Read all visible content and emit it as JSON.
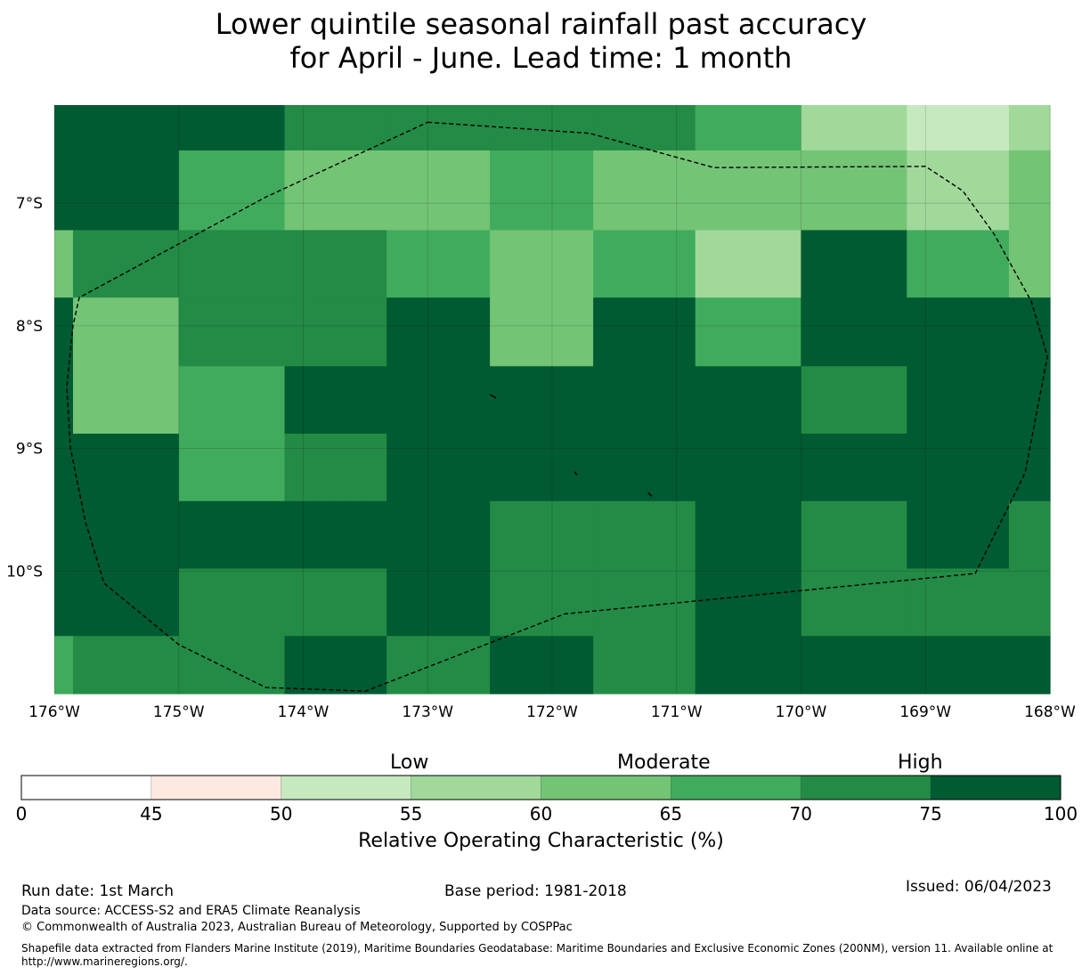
{
  "title": {
    "line1": "Lower quintile seasonal rainfall past accuracy",
    "line2": "for April - June. Lead time: 1 month"
  },
  "map": {
    "lon_labels": [
      "176°W",
      "175°W",
      "174°W",
      "173°W",
      "172°W",
      "171°W",
      "170°W",
      "169°W",
      "168°W"
    ],
    "lat_labels": [
      "7°S",
      "8°S",
      "9°S",
      "10°S"
    ],
    "lon_range": [
      -176,
      -168
    ],
    "lat_range": [
      -6.2,
      -11.0
    ],
    "lon_edges": [
      -176,
      -175.85,
      -175,
      -174.15,
      -173.33,
      -172.5,
      -171.67,
      -170.85,
      -170,
      -169.15,
      -168.33,
      -168
    ],
    "lat_edges": [
      -6.2,
      -6.57,
      -7.22,
      -7.77,
      -8.33,
      -8.88,
      -9.43,
      -9.98,
      -10.53,
      -11.0
    ],
    "cell_values": [
      [
        80,
        80,
        80,
        72,
        72,
        72,
        72,
        68,
        58,
        52,
        58
      ],
      [
        80,
        80,
        68,
        62,
        62,
        68,
        62,
        62,
        62,
        58,
        62
      ],
      [
        62,
        72,
        72,
        72,
        68,
        62,
        68,
        58,
        80,
        68,
        62
      ],
      [
        80,
        62,
        72,
        72,
        80,
        62,
        80,
        68,
        80,
        80,
        80
      ],
      [
        80,
        62,
        68,
        80,
        80,
        80,
        80,
        80,
        72,
        80,
        80
      ],
      [
        80,
        80,
        68,
        72,
        80,
        80,
        80,
        80,
        80,
        80,
        80
      ],
      [
        80,
        80,
        80,
        80,
        80,
        72,
        72,
        80,
        72,
        80,
        72
      ],
      [
        80,
        80,
        72,
        72,
        80,
        72,
        72,
        80,
        72,
        72,
        72
      ],
      [
        68,
        72,
        72,
        80,
        72,
        80,
        72,
        80,
        80,
        80,
        80
      ]
    ],
    "boundary": [
      [
        -173.0,
        -6.34
      ],
      [
        -171.7,
        -6.43
      ],
      [
        -170.7,
        -6.71
      ],
      [
        -169.0,
        -6.7
      ],
      [
        -168.7,
        -6.9
      ],
      [
        -168.45,
        -7.25
      ],
      [
        -168.15,
        -7.8
      ],
      [
        -168.02,
        -8.25
      ],
      [
        -168.2,
        -9.2
      ],
      [
        -168.6,
        -10.02
      ],
      [
        -171.9,
        -10.35
      ],
      [
        -173.5,
        -10.98
      ],
      [
        -174.3,
        -10.95
      ],
      [
        -175.0,
        -10.6
      ],
      [
        -175.6,
        -10.1
      ],
      [
        -175.75,
        -9.6
      ],
      [
        -175.87,
        -9.0
      ],
      [
        -175.9,
        -8.5
      ],
      [
        -175.85,
        -8.0
      ],
      [
        -175.8,
        -7.77
      ],
      [
        -174.3,
        -6.95
      ]
    ],
    "islands": [
      [
        [
          -172.5,
          -8.56
        ],
        [
          -172.45,
          -8.59
        ]
      ],
      [
        [
          -171.82,
          -9.19
        ],
        [
          -171.8,
          -9.22
        ]
      ],
      [
        [
          -171.23,
          -9.36
        ],
        [
          -171.2,
          -9.39
        ]
      ]
    ]
  },
  "colorbar": {
    "bounds": [
      0,
      45,
      50,
      55,
      60,
      65,
      70,
      75,
      100
    ],
    "colors": [
      "#ffffff",
      "#fde9e0",
      "#c7e9c0",
      "#a1d99b",
      "#74c476",
      "#41ab5d",
      "#238b45",
      "#005a32"
    ],
    "tick_labels": [
      "0",
      "45",
      "50",
      "55",
      "60",
      "65",
      "70",
      "75",
      "100"
    ],
    "category_labels": [
      "Low",
      "Moderate",
      "High"
    ],
    "axis_label": "Relative Operating Characteristic (%)"
  },
  "footer": {
    "run_date": "Run date: 1st March",
    "base_period": "Base period: 1981-2018",
    "issued": "Issued: 06/04/2023",
    "data_source": "Data source: ACCESS-S2 and ERA5 Climate Reanalysis",
    "copyright": "© Commonwealth of Australia 2023, Australian Bureau of Meteorology, Supported by COSPPac",
    "shapefile": "Shapefile data extracted from Flanders Marine Institute (2019), Maritime Boundaries Geodatabase: Maritime Boundaries and Exclusive Economic Zones (200NM), version 11. Available online at http://www.marineregions.org/."
  }
}
